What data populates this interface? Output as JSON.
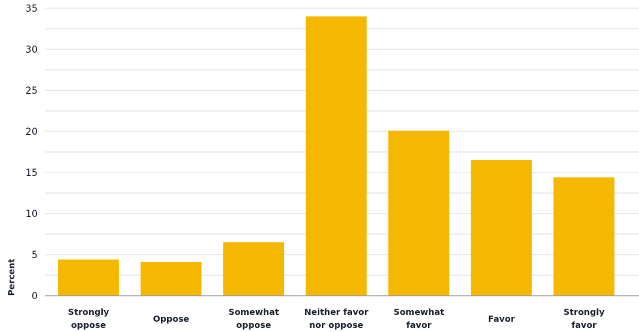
{
  "chart_data": {
    "type": "bar",
    "categories": [
      [
        "Strongly",
        "oppose"
      ],
      [
        "Oppose"
      ],
      [
        "Somewhat",
        "oppose"
      ],
      [
        "Neither favor",
        "nor oppose"
      ],
      [
        "Somewhat",
        "favor"
      ],
      [
        "Favor"
      ],
      [
        "Strongly",
        "favor"
      ]
    ],
    "values": [
      4.4,
      4.1,
      6.5,
      34.0,
      20.1,
      16.5,
      14.4
    ],
    "title": "",
    "xlabel": "",
    "ylabel": "Percent",
    "ylim": [
      0,
      35
    ],
    "yticks": [
      0,
      5,
      10,
      15,
      20,
      25,
      30,
      35
    ],
    "grid": true,
    "colors": {
      "bar": "#f5b800",
      "grid": "#d6dbe0",
      "text": "#1c2430"
    }
  }
}
